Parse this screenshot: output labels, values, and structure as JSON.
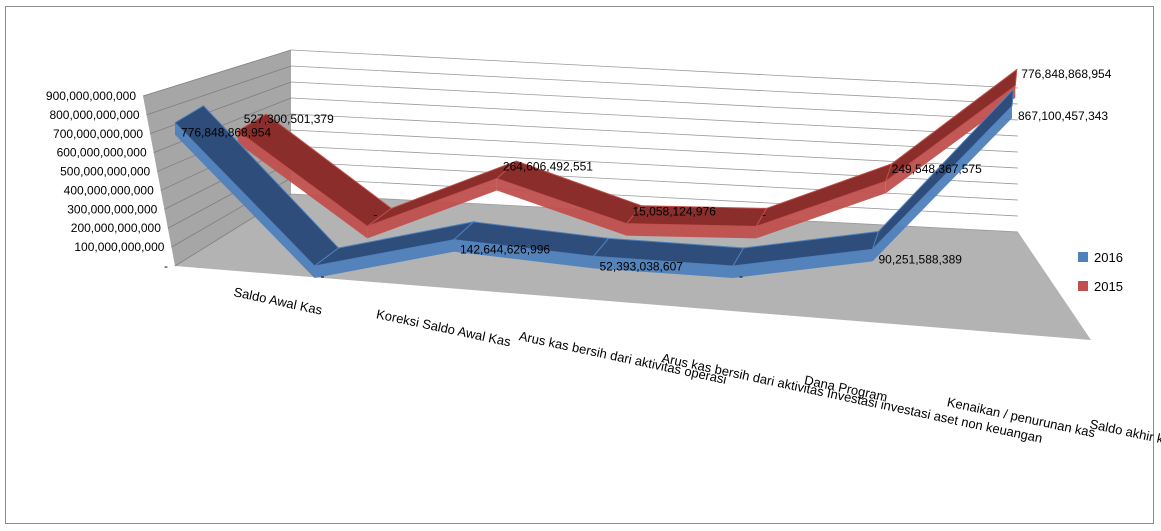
{
  "chart_data": {
    "type": "line",
    "style": "3d-line",
    "categories": [
      "Saldo Awal Kas",
      "Koreksi Saldo Awal Kas",
      "Arus kas bersih dari aktivitas operasi",
      "Arus kas bersih dari aktivitas Investasi investasi aset  non keuangan",
      "Dana Program",
      "Kenaikan / penurunan kas",
      "Saldo akhir kas"
    ],
    "series": [
      {
        "name": "2016",
        "color": "#4f81bd",
        "values": [
          776848868954,
          0,
          142644626996,
          52393038607,
          0,
          90251588389,
          867100457343
        ],
        "labels": [
          "776,848,868,954",
          "-",
          "142,644,626,996",
          "52,393,038,607",
          "-",
          "90,251,588,389",
          "867,100,457,343"
        ]
      },
      {
        "name": "2015",
        "color": "#c0504d",
        "values": [
          527300501379,
          0,
          264606492551,
          15058124976,
          0,
          249548367575,
          776848868954
        ],
        "labels": [
          "527,300,501,379",
          "-",
          "264,606,492,551",
          "15,058,124,976",
          "-",
          "249,548,367,575",
          "776,848,868,954"
        ]
      }
    ],
    "yticks": [
      "-",
      "100,000,000,000",
      "200,000,000,000",
      "300,000,000,000",
      "400,000,000,000",
      "500,000,000,000",
      "600,000,000,000",
      "700,000,000,000",
      "800,000,000,000",
      "900,000,000,000"
    ],
    "ylim": [
      0,
      900000000000
    ],
    "grid": true,
    "legend": "right",
    "wall_color": "#a6a6a6",
    "floor_color": "#b3b3b3"
  }
}
